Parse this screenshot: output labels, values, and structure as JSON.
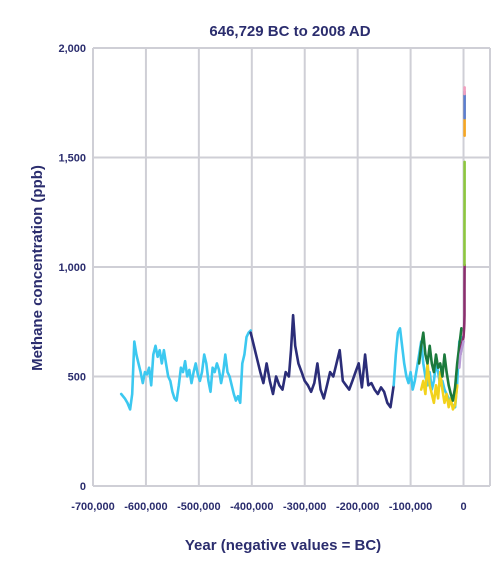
{
  "chart_data": {
    "type": "line",
    "title": "646,729 BC to 2008 AD",
    "xlabel": "Year (negative values = BC)",
    "ylabel": "Methane concentration (ppb)",
    "xlim": [
      -700000,
      50000
    ],
    "ylim": [
      0,
      2000
    ],
    "x_ticks": [
      -700000,
      -600000,
      -500000,
      -400000,
      -300000,
      -200000,
      -100000,
      0
    ],
    "x_tick_labels": [
      "-700,000",
      "-600,000",
      "-500,000",
      "-400,000",
      "-300,000",
      "-200,000",
      "-100,000",
      "0"
    ],
    "y_ticks": [
      0,
      500,
      1000,
      1500,
      2000
    ],
    "y_tick_labels": [
      "0",
      "500",
      "1,000",
      "1,500",
      "2,000"
    ],
    "grid": true,
    "legend": "none",
    "series": [
      {
        "color": "#3cc8f0",
        "x": [
          -646729,
          -640000,
          -635000,
          -630000,
          -626000,
          -622000,
          -618000,
          -614000,
          -610000,
          -606000,
          -602000,
          -598000,
          -594000,
          -590000,
          -586000,
          -582000,
          -578000,
          -574000,
          -570000,
          -566000,
          -562000,
          -558000,
          -554000,
          -550000,
          -546000,
          -542000,
          -538000,
          -534000,
          -530000,
          -526000,
          -522000,
          -518000,
          -514000,
          -510000,
          -506000,
          -502000,
          -498000,
          -494000,
          -490000,
          -486000,
          -482000,
          -478000,
          -474000,
          -470000,
          -466000,
          -462000,
          -458000,
          -454000,
          -450000,
          -446000,
          -442000,
          -438000,
          -434000,
          -430000,
          -426000,
          -422000,
          -418000,
          -414000,
          -410000,
          -406000,
          -402000
        ],
        "y": [
          420,
          400,
          380,
          350,
          420,
          660,
          600,
          560,
          520,
          470,
          520,
          510,
          540,
          460,
          600,
          640,
          590,
          620,
          560,
          620,
          560,
          500,
          480,
          430,
          400,
          390,
          460,
          540,
          520,
          570,
          500,
          530,
          470,
          520,
          560,
          510,
          480,
          520,
          600,
          560,
          480,
          430,
          540,
          520,
          560,
          530,
          470,
          520,
          600,
          520,
          500,
          460,
          420,
          390,
          410,
          380,
          560,
          600,
          680,
          700,
          710
        ]
      },
      {
        "color": "#2b2d78",
        "x": [
          -402000,
          -396000,
          -390000,
          -384000,
          -378000,
          -372000,
          -366000,
          -360000,
          -354000,
          -348000,
          -342000,
          -336000,
          -330000,
          -326000,
          -322000,
          -318000,
          -312000,
          -306000,
          -300000,
          -294000,
          -288000,
          -282000,
          -276000,
          -270000,
          -264000,
          -258000,
          -252000,
          -246000,
          -240000,
          -234000,
          -228000,
          -222000,
          -216000,
          -210000,
          -204000,
          -198000,
          -192000,
          -186000,
          -180000,
          -174000,
          -168000,
          -162000,
          -156000,
          -150000,
          -144000,
          -138000,
          -132000
        ],
        "y": [
          700,
          640,
          580,
          520,
          470,
          560,
          480,
          420,
          500,
          460,
          440,
          520,
          500,
          620,
          780,
          640,
          560,
          520,
          480,
          460,
          430,
          470,
          560,
          440,
          400,
          460,
          520,
          500,
          560,
          620,
          480,
          460,
          440,
          480,
          520,
          560,
          450,
          600,
          460,
          470,
          440,
          420,
          450,
          430,
          380,
          360,
          460
        ]
      },
      {
        "color": "#3cc8f0",
        "x": [
          -132000,
          -128000,
          -124000,
          -120000,
          -116000,
          -112000,
          -108000,
          -104000,
          -100000,
          -96000,
          -92000,
          -88000,
          -84000,
          -80000,
          -76000,
          -72000,
          -68000,
          -64000,
          -60000,
          -56000,
          -52000,
          -48000,
          -44000,
          -40000,
          -36000,
          -32000,
          -28000,
          -24000,
          -20000,
          -16000,
          -12000,
          -8000,
          -4000
        ],
        "y": [
          460,
          600,
          700,
          720,
          640,
          560,
          500,
          470,
          520,
          440,
          480,
          540,
          600,
          660,
          560,
          500,
          460,
          520,
          440,
          480,
          560,
          520,
          460,
          480,
          440,
          420,
          400,
          380,
          370,
          360,
          470,
          660,
          680
        ]
      },
      {
        "color": "#f2d21c",
        "x": [
          -80000,
          -76000,
          -72000,
          -68000,
          -64000,
          -60000,
          -56000,
          -52000,
          -48000,
          -44000,
          -40000,
          -36000,
          -32000,
          -28000,
          -24000,
          -20000,
          -16000,
          -12000
        ],
        "y": [
          440,
          480,
          420,
          560,
          460,
          420,
          380,
          460,
          400,
          520,
          440,
          380,
          420,
          360,
          400,
          350,
          370,
          460
        ]
      },
      {
        "color": "#1b7a3c",
        "x": [
          -84000,
          -80000,
          -76000,
          -72000,
          -68000,
          -64000,
          -60000,
          -56000,
          -52000,
          -48000,
          -44000,
          -40000,
          -36000,
          -32000,
          -28000,
          -24000,
          -20000,
          -16000,
          -12000,
          -8000,
          -4000
        ],
        "y": [
          560,
          640,
          700,
          600,
          560,
          640,
          560,
          520,
          600,
          540,
          560,
          500,
          600,
          520,
          460,
          420,
          390,
          450,
          560,
          640,
          720
        ]
      },
      {
        "color": "#8a2f6e",
        "x": [
          -6000,
          -4000,
          -2000,
          0,
          500,
          1000,
          1500,
          1800,
          1900,
          2008
        ],
        "y": [
          600,
          640,
          660,
          680,
          700,
          720,
          740,
          780,
          900,
          1010
        ]
      },
      {
        "color": "#8dc63f",
        "x": [
          1800,
          1850,
          1900,
          1950,
          2000,
          2008
        ],
        "y": [
          1010,
          1080,
          1180,
          1300,
          1420,
          1480
        ]
      },
      {
        "color": "#f5a623",
        "x": [
          1950,
          1970,
          1985,
          2000,
          2008
        ],
        "y": [
          1600,
          1650,
          1700,
          1760,
          1790
        ]
      },
      {
        "color": "#5a7fd6",
        "x": [
          1978,
          1990,
          2000,
          2008
        ],
        "y": [
          1680,
          1720,
          1770,
          1800
        ]
      },
      {
        "color": "#b79ad6",
        "x": [
          -8000,
          -6000,
          -4000,
          -2000,
          0
        ],
        "y": [
          540,
          600,
          620,
          640,
          660
        ]
      },
      {
        "color": "#f2a0c0",
        "x": [
          1984,
          2008
        ],
        "y": [
          1790,
          1820
        ]
      }
    ]
  }
}
